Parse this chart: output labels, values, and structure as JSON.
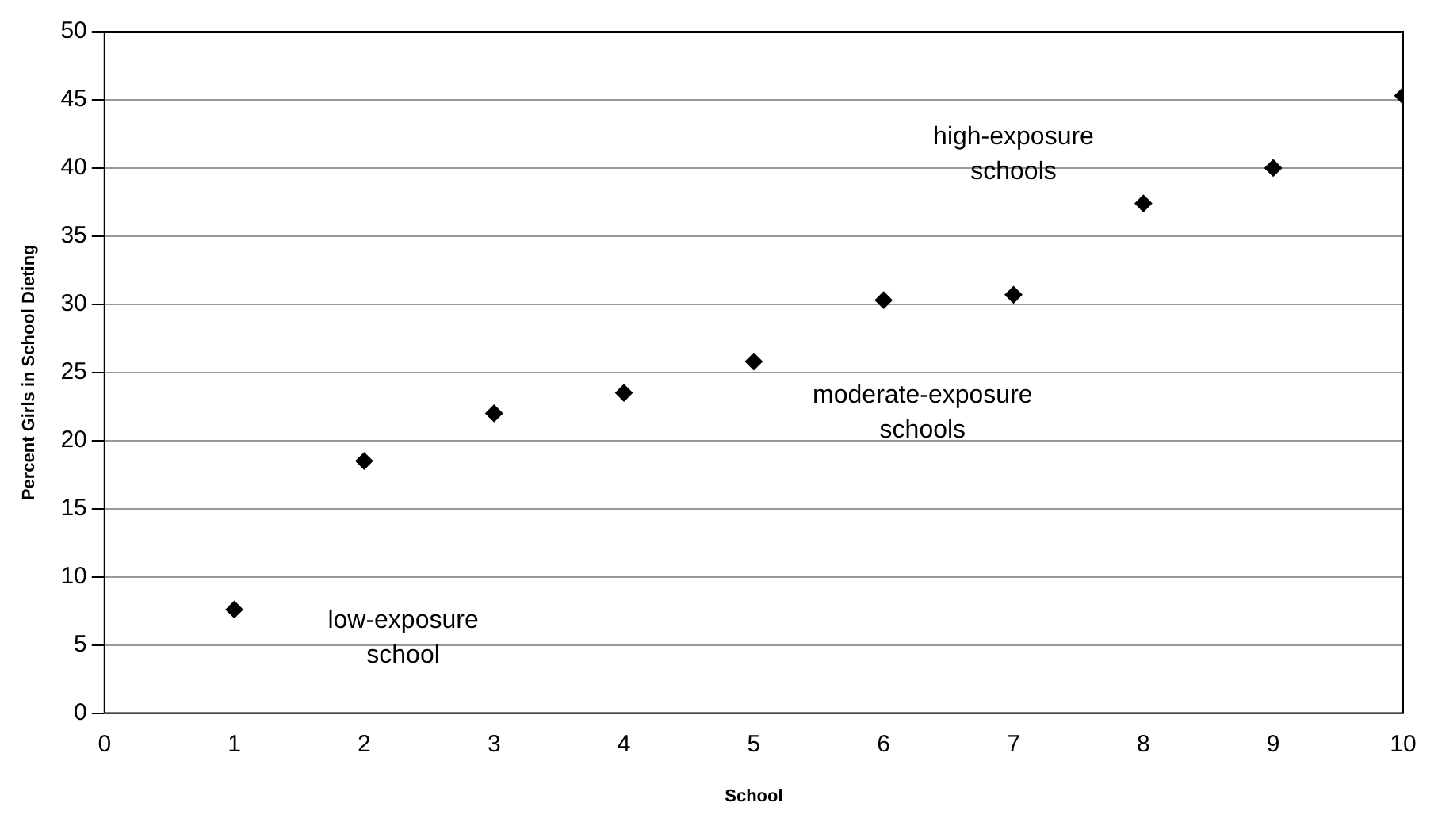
{
  "chart_data": {
    "type": "scatter",
    "xlabel": "School",
    "ylabel": "Percent Girls in School Dieting",
    "x": [
      1,
      2,
      3,
      4,
      5,
      6,
      7,
      8,
      9,
      10
    ],
    "series": [
      {
        "color": "#000000",
        "values": [
          7.6,
          18.5,
          22.0,
          23.5,
          25.8,
          30.3,
          30.7,
          37.4,
          40.0,
          45.3
        ]
      }
    ],
    "xlim": [
      0,
      10
    ],
    "xticks": [
      0,
      1,
      2,
      3,
      4,
      5,
      6,
      7,
      8,
      9,
      10
    ],
    "ylim": [
      0,
      50
    ],
    "yticks": [
      0,
      5,
      10,
      15,
      20,
      25,
      30,
      35,
      40,
      45,
      50
    ],
    "grid": "y",
    "marker": "diamond",
    "legend": false,
    "annotations": [
      "low-exposure school",
      "moderate-exposure schools",
      "high-exposure schools"
    ]
  }
}
